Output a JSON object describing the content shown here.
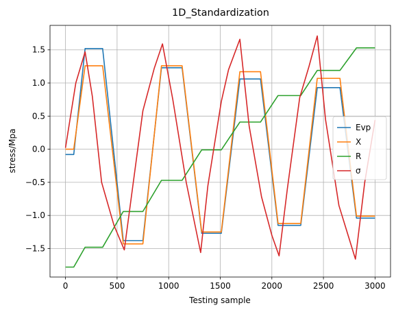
{
  "chart_data": {
    "type": "line",
    "title": "1D_Standardization",
    "xlabel": "Testing sample",
    "ylabel": "stress/Mpa",
    "xlim": [
      -150,
      3150
    ],
    "ylim": [
      -1.93,
      1.87
    ],
    "xticks": [
      0,
      500,
      1000,
      1500,
      2000,
      2500,
      3000
    ],
    "yticks": [
      -1.5,
      -1.0,
      -0.5,
      0.0,
      0.5,
      1.0,
      1.5
    ],
    "xtick_labels": [
      "0",
      "500",
      "1000",
      "1500",
      "2000",
      "2500",
      "3000"
    ],
    "ytick_labels": [
      "−1.5",
      "−1.0",
      "−0.5",
      "0.0",
      "0.5",
      "1.0",
      "1.5"
    ],
    "grid": true,
    "legend_position": "center-right",
    "series": [
      {
        "name": "Evp",
        "color": "#1f77b4",
        "x": [
          0,
          80,
          190,
          360,
          560,
          750,
          930,
          1130,
          1320,
          1510,
          1690,
          1890,
          2060,
          2280,
          2440,
          2660,
          2820,
          3000
        ],
        "y": [
          -0.08,
          -0.08,
          1.52,
          1.52,
          -1.38,
          -1.38,
          1.23,
          1.23,
          -1.27,
          -1.27,
          1.06,
          1.06,
          -1.15,
          -1.15,
          0.93,
          0.93,
          -1.04,
          -1.04
        ]
      },
      {
        "name": "X",
        "color": "#ff7f0e",
        "x": [
          0,
          80,
          190,
          360,
          560,
          750,
          930,
          1130,
          1320,
          1510,
          1690,
          1890,
          2060,
          2280,
          2440,
          2660,
          2820,
          3000
        ],
        "y": [
          0.0,
          0.0,
          1.26,
          1.26,
          -1.43,
          -1.43,
          1.26,
          1.26,
          -1.25,
          -1.25,
          1.17,
          1.17,
          -1.12,
          -1.12,
          1.07,
          1.07,
          -1.01,
          -1.01
        ]
      },
      {
        "name": "R",
        "color": "#2ca02c",
        "x": [
          0,
          80,
          190,
          360,
          560,
          750,
          930,
          1130,
          1320,
          1510,
          1690,
          1890,
          2060,
          2280,
          2440,
          2660,
          2820,
          3000
        ],
        "y": [
          -1.78,
          -1.78,
          -1.48,
          -1.48,
          -0.94,
          -0.94,
          -0.47,
          -0.47,
          -0.01,
          -0.01,
          0.41,
          0.41,
          0.81,
          0.81,
          1.19,
          1.19,
          1.53,
          1.53
        ]
      },
      {
        "name": "σ",
        "color": "#d62728",
        "x": [
          0,
          100,
          190,
          260,
          350,
          470,
          570,
          640,
          750,
          860,
          940,
          1040,
          1170,
          1310,
          1380,
          1510,
          1580,
          1690,
          1780,
          1900,
          2000,
          2070,
          2150,
          2270,
          2360,
          2440,
          2520,
          2650,
          2810,
          2900,
          3000
        ],
        "y": [
          0.02,
          1.0,
          1.47,
          0.8,
          -0.5,
          -1.15,
          -1.52,
          -0.7,
          0.58,
          1.22,
          1.59,
          0.75,
          -0.5,
          -1.56,
          -0.55,
          0.72,
          1.2,
          1.66,
          0.35,
          -0.72,
          -1.3,
          -1.61,
          -0.6,
          0.78,
          1.25,
          1.71,
          0.45,
          -0.85,
          -1.66,
          -0.5,
          0.44
        ]
      }
    ]
  }
}
